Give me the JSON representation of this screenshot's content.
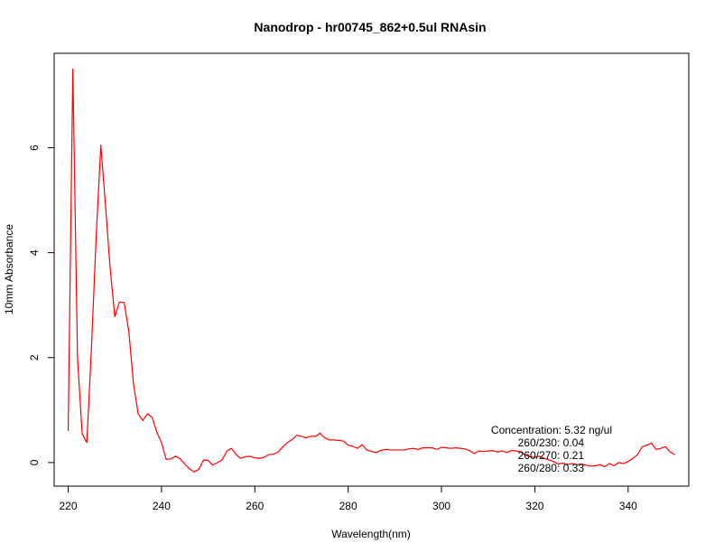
{
  "chart_data": {
    "type": "line",
    "title": "Nanodrop - hr00745_862+0.5ul RNAsin",
    "xlabel": "Wavelength(nm)",
    "ylabel": "10mm Absorbance",
    "xlim": [
      217,
      353
    ],
    "ylim": [
      -0.45,
      7.8
    ],
    "x_ticks": [
      220,
      240,
      260,
      280,
      300,
      320,
      340
    ],
    "y_ticks": [
      0,
      2,
      4,
      6
    ],
    "grid": false,
    "legend": "none",
    "series": [
      {
        "color": "#ff0000",
        "x": [
          220,
          221,
          222,
          223,
          224,
          225,
          226,
          227,
          228,
          229,
          230,
          231,
          232,
          233,
          234,
          235,
          236,
          237,
          238,
          239,
          240,
          241,
          242,
          243,
          244,
          245,
          246,
          247,
          248,
          249,
          250,
          251,
          252,
          253,
          254,
          255,
          256,
          257,
          258,
          259,
          260,
          261,
          262,
          263,
          264,
          265,
          266,
          267,
          268,
          269,
          270,
          271,
          272,
          273,
          274,
          275,
          276,
          277,
          278,
          279,
          280,
          281,
          282,
          283,
          284,
          285,
          286,
          287,
          288,
          289,
          290,
          291,
          292,
          293,
          294,
          295,
          296,
          297,
          298,
          299,
          300,
          301,
          302,
          303,
          304,
          305,
          306,
          307,
          308,
          309,
          310,
          311,
          312,
          313,
          314,
          315,
          316,
          317,
          318,
          319,
          320,
          321,
          322,
          323,
          324,
          325,
          326,
          327,
          328,
          329,
          330,
          331,
          332,
          333,
          334,
          335,
          336,
          337,
          338,
          339,
          340,
          341,
          342,
          343,
          344,
          345,
          346,
          347,
          348,
          349,
          350
        ],
        "y": [
          0.6,
          7.5,
          2.0,
          0.55,
          0.38,
          2.2,
          4.3,
          6.05,
          4.9,
          3.7,
          2.78,
          3.06,
          3.05,
          2.5,
          1.5,
          0.93,
          0.8,
          0.93,
          0.86,
          0.58,
          0.38,
          0.06,
          0.07,
          0.12,
          0.07,
          -0.03,
          -0.12,
          -0.18,
          -0.13,
          0.05,
          0.04,
          -0.05,
          0.0,
          0.05,
          0.22,
          0.27,
          0.15,
          0.08,
          0.11,
          0.12,
          0.09,
          0.08,
          0.1,
          0.15,
          0.16,
          0.2,
          0.3,
          0.38,
          0.44,
          0.52,
          0.5,
          0.47,
          0.5,
          0.5,
          0.56,
          0.47,
          0.43,
          0.43,
          0.42,
          0.41,
          0.33,
          0.31,
          0.27,
          0.34,
          0.24,
          0.21,
          0.19,
          0.23,
          0.25,
          0.24,
          0.24,
          0.24,
          0.24,
          0.26,
          0.27,
          0.25,
          0.28,
          0.28,
          0.28,
          0.25,
          0.29,
          0.28,
          0.27,
          0.28,
          0.27,
          0.26,
          0.23,
          0.17,
          0.22,
          0.21,
          0.22,
          0.23,
          0.2,
          0.22,
          0.19,
          0.23,
          0.22,
          0.2,
          0.14,
          0.11,
          0.1,
          0.12,
          0.08,
          0.05,
          0.02,
          -0.03,
          -0.01,
          -0.04,
          -0.02,
          -0.04,
          -0.03,
          -0.05,
          -0.07,
          -0.06,
          -0.04,
          -0.08,
          -0.02,
          -0.06,
          0.0,
          -0.02,
          0.02,
          0.08,
          0.15,
          0.3,
          0.33,
          0.37,
          0.25,
          0.27,
          0.3,
          0.2,
          0.15
        ]
      }
    ],
    "annotations": [
      "Concentration: 5.32 ng/ul",
      "260/230: 0.04",
      "260/270: 0.21",
      "260/280: 0.33"
    ]
  }
}
